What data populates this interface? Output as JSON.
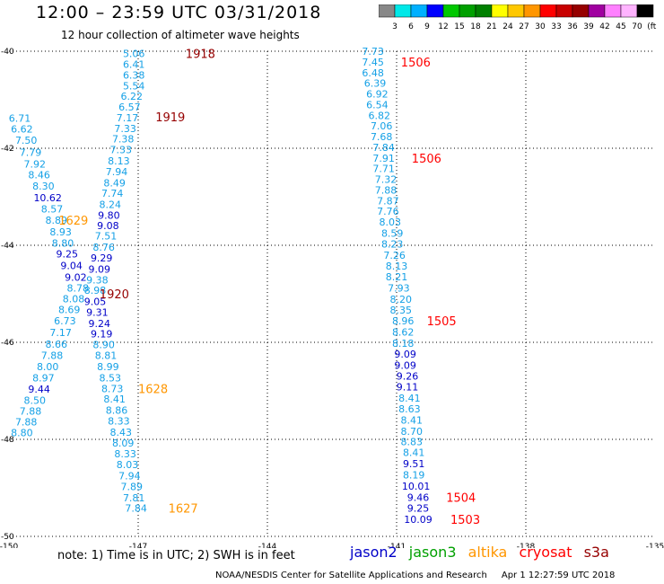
{
  "header": {
    "title": "12:00 – 23:59 UTC 03/31/2018",
    "subtitle": "12 hour collection of altimeter wave heights"
  },
  "colorbar": {
    "colors": [
      "#888888",
      "#00e8e8",
      "#00b0ff",
      "#0000ff",
      "#00c800",
      "#00a000",
      "#008000",
      "#ffff00",
      "#ffc800",
      "#ff9600",
      "#ff0000",
      "#c80000",
      "#960000",
      "#a000a0",
      "#ff80ff",
      "#ffb4ff",
      "#000000"
    ],
    "labels": [
      "3",
      "6",
      "9",
      "12",
      "15",
      "18",
      "21",
      "24",
      "27",
      "30",
      "33",
      "36",
      "39",
      "42",
      "45",
      "70",
      "(ft)"
    ]
  },
  "note": "note:  1) Time is in UTC;  2) SWH is in feet",
  "legend": [
    {
      "name": "jason2",
      "color": "#0000c8"
    },
    {
      "name": "jason3",
      "color": "#00a000"
    },
    {
      "name": "altika",
      "color": "#ff9600"
    },
    {
      "name": "cryosat",
      "color": "#ff0000"
    },
    {
      "name": "s3a",
      "color": "#960000"
    }
  ],
  "footer": {
    "agency": "NOAA/NESDIS Center for Satellite Applications and Research",
    "timestamp": "Apr  1 12:27:59 UTC 2018"
  },
  "chart_data": {
    "type": "scatter",
    "title": "12:00 – 23:59 UTC 03/31/2018",
    "xlim": [
      -150,
      -135
    ],
    "ylim": [
      -50,
      -40
    ],
    "xticks": [
      -150,
      -147,
      -144,
      -141,
      -138,
      -135
    ],
    "yticks": [
      -40,
      -42,
      -44,
      -46,
      -48,
      -50
    ],
    "xtick_labels": [
      "-150",
      "-147",
      "-144",
      "-141",
      "-138",
      "-135"
    ],
    "ytick_labels": [
      "-40",
      "-42",
      "-44",
      "-46",
      "-48",
      "-50"
    ],
    "grid": true,
    "points": [
      {
        "x": -147.1,
        "y": -40.05,
        "v": "5.06",
        "c": "#14a0e6"
      },
      {
        "x": -147.1,
        "y": -40.27,
        "v": "6.41",
        "c": "#14a0e6"
      },
      {
        "x": -147.1,
        "y": -40.49,
        "v": "6.38",
        "c": "#14a0e6"
      },
      {
        "x": -147.1,
        "y": -40.71,
        "v": "5.54",
        "c": "#14a0e6"
      },
      {
        "x": -147.15,
        "y": -40.93,
        "v": "6.22",
        "c": "#14a0e6"
      },
      {
        "x": -147.2,
        "y": -41.15,
        "v": "6.57",
        "c": "#14a0e6"
      },
      {
        "x": -147.25,
        "y": -41.37,
        "v": "7.17",
        "c": "#14a0e6"
      },
      {
        "x": -147.3,
        "y": -41.59,
        "v": "7.33",
        "c": "#14a0e6"
      },
      {
        "x": -147.35,
        "y": -41.81,
        "v": "7.38",
        "c": "#14a0e6"
      },
      {
        "x": -147.4,
        "y": -42.03,
        "v": "7.33",
        "c": "#14a0e6"
      },
      {
        "x": -147.45,
        "y": -42.26,
        "v": "8.13",
        "c": "#14a0e6"
      },
      {
        "x": -147.5,
        "y": -42.48,
        "v": "7.94",
        "c": "#14a0e6"
      },
      {
        "x": -147.55,
        "y": -42.71,
        "v": "8.49",
        "c": "#14a0e6"
      },
      {
        "x": -147.6,
        "y": -42.93,
        "v": "7.74",
        "c": "#14a0e6"
      },
      {
        "x": -147.65,
        "y": -43.16,
        "v": "8.24",
        "c": "#14a0e6"
      },
      {
        "x": -147.68,
        "y": -43.38,
        "v": "9.80",
        "c": "#0000c8"
      },
      {
        "x": -147.7,
        "y": -43.59,
        "v": "9.08",
        "c": "#0000c8"
      },
      {
        "x": -147.75,
        "y": -43.81,
        "v": "7.51",
        "c": "#14a0e6"
      },
      {
        "x": -147.8,
        "y": -44.04,
        "v": "8.76",
        "c": "#14a0e6"
      },
      {
        "x": -147.85,
        "y": -44.26,
        "v": "9.29",
        "c": "#0000c8"
      },
      {
        "x": -147.9,
        "y": -44.49,
        "v": "9.09",
        "c": "#0000c8"
      },
      {
        "x": -147.95,
        "y": -44.71,
        "v": "9.38",
        "c": "#14a0e6"
      },
      {
        "x": -148.0,
        "y": -44.93,
        "v": "8.98",
        "c": "#14a0e6"
      },
      {
        "x": -148.0,
        "y": -45.16,
        "v": "9.05",
        "c": "#0000c8"
      },
      {
        "x": -147.95,
        "y": -45.38,
        "v": "9.31",
        "c": "#0000c8"
      },
      {
        "x": -147.9,
        "y": -45.61,
        "v": "9.24",
        "c": "#0000c8"
      },
      {
        "x": -147.85,
        "y": -45.82,
        "v": "9.19",
        "c": "#0000c8"
      },
      {
        "x": -147.8,
        "y": -46.05,
        "v": "8.90",
        "c": "#14a0e6"
      },
      {
        "x": -147.75,
        "y": -46.27,
        "v": "8.81",
        "c": "#14a0e6"
      },
      {
        "x": -147.7,
        "y": -46.5,
        "v": "8.99",
        "c": "#14a0e6"
      },
      {
        "x": -147.65,
        "y": -46.73,
        "v": "8.53",
        "c": "#14a0e6"
      },
      {
        "x": -147.6,
        "y": -46.95,
        "v": "8.73",
        "c": "#14a0e6"
      },
      {
        "x": -147.55,
        "y": -47.17,
        "v": "8.41",
        "c": "#14a0e6"
      },
      {
        "x": -147.5,
        "y": -47.4,
        "v": "8.86",
        "c": "#14a0e6"
      },
      {
        "x": -147.45,
        "y": -47.62,
        "v": "8.33",
        "c": "#14a0e6"
      },
      {
        "x": -147.4,
        "y": -47.85,
        "v": "8.43",
        "c": "#14a0e6"
      },
      {
        "x": -147.35,
        "y": -48.07,
        "v": "8.09",
        "c": "#14a0e6"
      },
      {
        "x": -147.3,
        "y": -48.3,
        "v": "8.33",
        "c": "#14a0e6"
      },
      {
        "x": -147.25,
        "y": -48.52,
        "v": "8.03",
        "c": "#14a0e6"
      },
      {
        "x": -147.2,
        "y": -48.75,
        "v": "7.94",
        "c": "#14a0e6"
      },
      {
        "x": -147.15,
        "y": -48.97,
        "v": "7.89",
        "c": "#14a0e6"
      },
      {
        "x": -147.1,
        "y": -49.2,
        "v": "7.81",
        "c": "#14a0e6"
      },
      {
        "x": -147.05,
        "y": -49.42,
        "v": "7.84",
        "c": "#14a0e6"
      },
      {
        "x": -149.75,
        "y": -41.38,
        "v": "6.71",
        "c": "#14a0e6"
      },
      {
        "x": -149.7,
        "y": -41.6,
        "v": "6.62",
        "c": "#14a0e6"
      },
      {
        "x": -149.6,
        "y": -41.83,
        "v": "7.50",
        "c": "#14a0e6"
      },
      {
        "x": -149.5,
        "y": -42.08,
        "v": "7.79",
        "c": "#14a0e6"
      },
      {
        "x": -149.4,
        "y": -42.32,
        "v": "7.92",
        "c": "#14a0e6"
      },
      {
        "x": -149.3,
        "y": -42.55,
        "v": "8.46",
        "c": "#14a0e6"
      },
      {
        "x": -149.2,
        "y": -42.78,
        "v": "8.30",
        "c": "#14a0e6"
      },
      {
        "x": -149.1,
        "y": -43.02,
        "v": "10.62",
        "c": "#0000c8"
      },
      {
        "x": -149.0,
        "y": -43.25,
        "v": "8.57",
        "c": "#14a0e6"
      },
      {
        "x": -148.9,
        "y": -43.48,
        "v": "8.89",
        "c": "#14a0e6"
      },
      {
        "x": -148.8,
        "y": -43.72,
        "v": "8.93",
        "c": "#14a0e6"
      },
      {
        "x": -148.75,
        "y": -43.95,
        "v": "8.80",
        "c": "#14a0e6"
      },
      {
        "x": -148.65,
        "y": -44.18,
        "v": "9.25",
        "c": "#0000c8"
      },
      {
        "x": -148.55,
        "y": -44.42,
        "v": "9.04",
        "c": "#0000c8"
      },
      {
        "x": -148.45,
        "y": -44.66,
        "v": "9.02",
        "c": "#0000c8"
      },
      {
        "x": -148.4,
        "y": -44.88,
        "v": "8.78",
        "c": "#14a0e6"
      },
      {
        "x": -148.5,
        "y": -45.1,
        "v": "8.08",
        "c": "#14a0e6"
      },
      {
        "x": -148.6,
        "y": -45.32,
        "v": "8.69",
        "c": "#14a0e6"
      },
      {
        "x": -148.7,
        "y": -45.56,
        "v": "6.73",
        "c": "#14a0e6"
      },
      {
        "x": -148.8,
        "y": -45.8,
        "v": "7.17",
        "c": "#14a0e6"
      },
      {
        "x": -148.9,
        "y": -46.04,
        "v": "8.66",
        "c": "#14a0e6"
      },
      {
        "x": -149.0,
        "y": -46.27,
        "v": "7.88",
        "c": "#14a0e6"
      },
      {
        "x": -149.1,
        "y": -46.5,
        "v": "8.00",
        "c": "#14a0e6"
      },
      {
        "x": -149.2,
        "y": -46.73,
        "v": "8.97",
        "c": "#14a0e6"
      },
      {
        "x": -149.3,
        "y": -46.96,
        "v": "9.44",
        "c": "#0000c8"
      },
      {
        "x": -149.4,
        "y": -47.19,
        "v": "8.50",
        "c": "#14a0e6"
      },
      {
        "x": -149.5,
        "y": -47.42,
        "v": "7.88",
        "c": "#14a0e6"
      },
      {
        "x": -149.6,
        "y": -47.64,
        "v": "7.88",
        "c": "#14a0e6"
      },
      {
        "x": -149.7,
        "y": -47.86,
        "v": "8.80",
        "c": "#14a0e6"
      },
      {
        "x": -141.55,
        "y": -40.0,
        "v": "7.73",
        "c": "#14a0e6"
      },
      {
        "x": -141.55,
        "y": -40.22,
        "v": "7.45",
        "c": "#14a0e6"
      },
      {
        "x": -141.55,
        "y": -40.44,
        "v": "6.48",
        "c": "#14a0e6"
      },
      {
        "x": -141.5,
        "y": -40.66,
        "v": "6.39",
        "c": "#14a0e6"
      },
      {
        "x": -141.45,
        "y": -40.88,
        "v": "6.92",
        "c": "#14a0e6"
      },
      {
        "x": -141.45,
        "y": -41.1,
        "v": "6.54",
        "c": "#14a0e6"
      },
      {
        "x": -141.4,
        "y": -41.32,
        "v": "6.82",
        "c": "#14a0e6"
      },
      {
        "x": -141.35,
        "y": -41.54,
        "v": "7.06",
        "c": "#14a0e6"
      },
      {
        "x": -141.35,
        "y": -41.76,
        "v": "7.68",
        "c": "#14a0e6"
      },
      {
        "x": -141.3,
        "y": -41.98,
        "v": "7.84",
        "c": "#14a0e6"
      },
      {
        "x": -141.3,
        "y": -42.2,
        "v": "7.91",
        "c": "#14a0e6"
      },
      {
        "x": -141.3,
        "y": -42.42,
        "v": "7.71",
        "c": "#14a0e6"
      },
      {
        "x": -141.25,
        "y": -42.64,
        "v": "7.32",
        "c": "#14a0e6"
      },
      {
        "x": -141.25,
        "y": -42.86,
        "v": "7.88",
        "c": "#14a0e6"
      },
      {
        "x": -141.2,
        "y": -43.08,
        "v": "7.87",
        "c": "#14a0e6"
      },
      {
        "x": -141.2,
        "y": -43.3,
        "v": "7.76",
        "c": "#14a0e6"
      },
      {
        "x": -141.15,
        "y": -43.52,
        "v": "8.03",
        "c": "#14a0e6"
      },
      {
        "x": -141.1,
        "y": -43.75,
        "v": "8.59",
        "c": "#14a0e6"
      },
      {
        "x": -141.1,
        "y": -43.97,
        "v": "8.23",
        "c": "#14a0e6"
      },
      {
        "x": -141.05,
        "y": -44.2,
        "v": "7.26",
        "c": "#14a0e6"
      },
      {
        "x": -141.0,
        "y": -44.43,
        "v": "8.13",
        "c": "#14a0e6"
      },
      {
        "x": -141.0,
        "y": -44.65,
        "v": "8.21",
        "c": "#14a0e6"
      },
      {
        "x": -140.95,
        "y": -44.88,
        "v": "7.93",
        "c": "#14a0e6"
      },
      {
        "x": -140.9,
        "y": -45.11,
        "v": "8.20",
        "c": "#14a0e6"
      },
      {
        "x": -140.9,
        "y": -45.33,
        "v": "8.35",
        "c": "#14a0e6"
      },
      {
        "x": -140.85,
        "y": -45.56,
        "v": "8.96",
        "c": "#14a0e6"
      },
      {
        "x": -140.85,
        "y": -45.79,
        "v": "8.62",
        "c": "#14a0e6"
      },
      {
        "x": -140.85,
        "y": -46.02,
        "v": "8.18",
        "c": "#14a0e6"
      },
      {
        "x": -140.8,
        "y": -46.24,
        "v": "9.09",
        "c": "#0000c8"
      },
      {
        "x": -140.8,
        "y": -46.47,
        "v": "9.09",
        "c": "#0000c8"
      },
      {
        "x": -140.75,
        "y": -46.69,
        "v": "9.26",
        "c": "#0000c8"
      },
      {
        "x": -140.75,
        "y": -46.92,
        "v": "9.11",
        "c": "#0000c8"
      },
      {
        "x": -140.7,
        "y": -47.15,
        "v": "8.41",
        "c": "#14a0e6"
      },
      {
        "x": -140.7,
        "y": -47.37,
        "v": "8.63",
        "c": "#14a0e6"
      },
      {
        "x": -140.65,
        "y": -47.6,
        "v": "8.41",
        "c": "#14a0e6"
      },
      {
        "x": -140.65,
        "y": -47.83,
        "v": "8.70",
        "c": "#14a0e6"
      },
      {
        "x": -140.65,
        "y": -48.05,
        "v": "8.83",
        "c": "#14a0e6"
      },
      {
        "x": -140.6,
        "y": -48.27,
        "v": "8.41",
        "c": "#14a0e6"
      },
      {
        "x": -140.6,
        "y": -48.5,
        "v": "9.51",
        "c": "#0000c8"
      },
      {
        "x": -140.6,
        "y": -48.73,
        "v": "8.19",
        "c": "#14a0e6"
      },
      {
        "x": -140.55,
        "y": -48.96,
        "v": "10.01",
        "c": "#0000c8"
      },
      {
        "x": -140.5,
        "y": -49.19,
        "v": "9.46",
        "c": "#0000c8"
      },
      {
        "x": -140.5,
        "y": -49.42,
        "v": "9.25",
        "c": "#0000c8"
      },
      {
        "x": -140.5,
        "y": -49.65,
        "v": "10.09",
        "c": "#0000c8"
      }
    ],
    "orbits": [
      {
        "x": -145.9,
        "y": -40.05,
        "label": "1918",
        "c": "#960000"
      },
      {
        "x": -146.6,
        "y": -41.35,
        "label": "1919",
        "c": "#960000"
      },
      {
        "x": -147.9,
        "y": -45.0,
        "label": "1920",
        "c": "#960000"
      },
      {
        "x": -148.85,
        "y": -43.48,
        "label": "1629",
        "c": "#ff9600"
      },
      {
        "x": -147.0,
        "y": -46.95,
        "label": "1628",
        "c": "#ff9600"
      },
      {
        "x": -146.3,
        "y": -49.42,
        "label": "1627",
        "c": "#ff9600"
      },
      {
        "x": -140.9,
        "y": -40.22,
        "label": "1506",
        "c": "#ff0000"
      },
      {
        "x": -140.65,
        "y": -42.2,
        "label": "1506",
        "c": "#ff0000"
      },
      {
        "x": -140.3,
        "y": -45.56,
        "label": "1505",
        "c": "#ff0000"
      },
      {
        "x": -139.85,
        "y": -49.19,
        "label": "1504",
        "c": "#ff0000"
      },
      {
        "x": -139.75,
        "y": -49.65,
        "label": "1503",
        "c": "#ff0000"
      }
    ]
  }
}
